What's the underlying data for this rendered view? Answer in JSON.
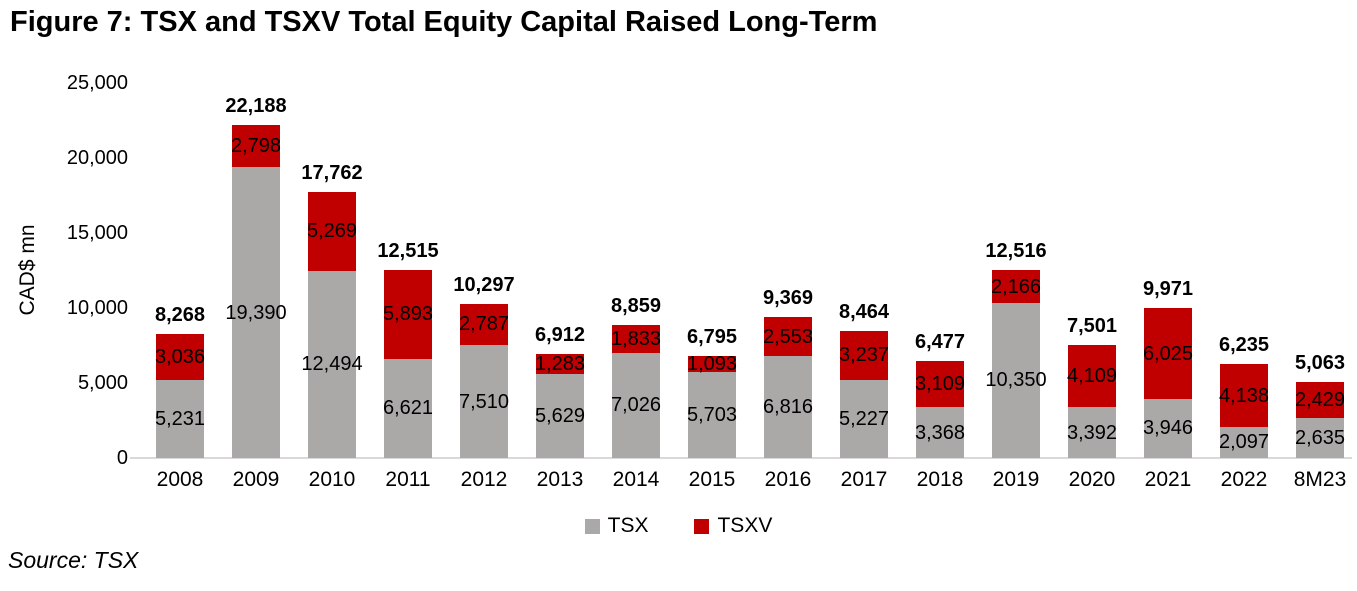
{
  "title": "Figure 7: TSX and TSXV Total Equity Capital Raised Long-Term",
  "source_note": "Source: TSX",
  "colors": {
    "tsx_gray": "#ABA8A8",
    "tsxv_red": "#C00000",
    "axis_line": "#D9D9D9",
    "text": "#000000",
    "background": "#FFFFFF"
  },
  "chart_data": {
    "type": "bar",
    "stacked": true,
    "title": "Figure 7: TSX and TSXV Total Equity Capital Raised Long-Term",
    "xlabel": "",
    "ylabel": "CAD$ mn",
    "ylim": [
      0,
      25000
    ],
    "yticks": [
      0,
      5000,
      10000,
      15000,
      20000,
      25000
    ],
    "ytick_labels": [
      "0",
      "5,000",
      "10,000",
      "15,000",
      "20,000",
      "25,000"
    ],
    "grid": false,
    "legend_position": "bottom",
    "legend": [
      "TSX",
      "TSXV"
    ],
    "categories": [
      "2008",
      "2009",
      "2010",
      "2011",
      "2012",
      "2013",
      "2014",
      "2015",
      "2016",
      "2017",
      "2018",
      "2019",
      "2020",
      "2021",
      "2022",
      "8M23"
    ],
    "series": [
      {
        "name": "TSX",
        "color": "#ABA8A8",
        "values": [
          5231,
          19390,
          12494,
          6621,
          7510,
          5629,
          7026,
          5703,
          6816,
          5227,
          3368,
          10350,
          3392,
          3946,
          2097,
          2635
        ]
      },
      {
        "name": "TSXV",
        "color": "#C00000",
        "values": [
          3036,
          2798,
          5269,
          5893,
          2787,
          1283,
          1833,
          1093,
          2553,
          3237,
          3109,
          2166,
          4109,
          6025,
          4138,
          2429
        ]
      }
    ],
    "totals": [
      8268,
      22188,
      17762,
      12515,
      10297,
      6912,
      8859,
      6795,
      9369,
      8464,
      6477,
      12516,
      7501,
      9971,
      6235,
      5063
    ]
  }
}
